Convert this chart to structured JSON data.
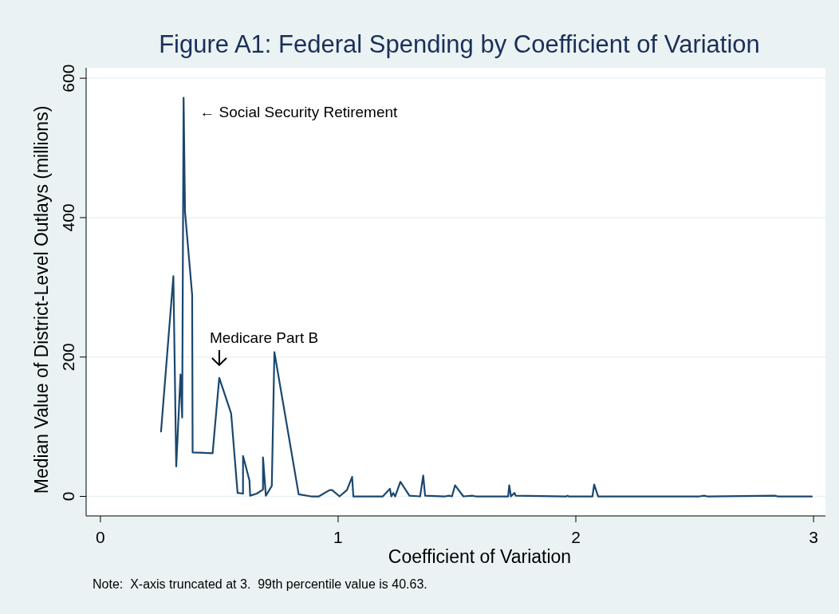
{
  "chart_data": {
    "type": "line",
    "title": "Figure A1: Federal Spending by Coefficient of Variation",
    "xlabel": "Coefficient of Variation",
    "ylabel": "Median Value of District-Level Outlays (millions)",
    "xlim": [
      -0.06,
      3.05
    ],
    "ylim": [
      -28,
      615
    ],
    "xticks": [
      0,
      1,
      2,
      3
    ],
    "yticks": [
      0,
      200,
      400,
      600
    ],
    "grid": "y",
    "series": [
      {
        "color": "#1a476f",
        "x": [
          0.255,
          0.307,
          0.319,
          0.337,
          0.344,
          0.35,
          0.356,
          0.386,
          0.388,
          0.472,
          0.5,
          0.55,
          0.577,
          0.6,
          0.6,
          0.627,
          0.63,
          0.658,
          0.684,
          0.684,
          0.696,
          0.721,
          0.732,
          0.834,
          0.886,
          0.919,
          0.964,
          0.975,
          1.006,
          1.037,
          1.059,
          1.064,
          1.188,
          1.218,
          1.224,
          1.232,
          1.24,
          1.262,
          1.3,
          1.345,
          1.358,
          1.366,
          1.45,
          1.466,
          1.479,
          1.492,
          1.527,
          1.563,
          1.579,
          1.715,
          1.72,
          1.727,
          1.742,
          1.747,
          1.96,
          1.965,
          1.97,
          2.07,
          2.077,
          2.094,
          2.519,
          2.54,
          2.553,
          2.838,
          2.849,
          2.993
        ],
        "values": [
          93,
          316,
          43,
          175,
          113,
          572,
          408,
          289,
          63,
          62,
          170,
          119,
          5,
          4,
          58,
          23,
          1,
          4,
          10,
          56,
          1,
          15,
          207,
          3,
          0,
          0,
          9,
          9,
          0,
          9,
          28,
          0,
          0,
          11,
          0,
          5,
          0,
          21,
          1,
          0,
          30,
          1,
          0,
          1,
          0,
          16,
          0,
          1,
          0,
          0,
          16,
          0,
          5,
          1,
          0,
          1,
          0,
          0,
          17,
          0,
          0,
          1,
          0,
          1,
          0,
          0
        ]
      }
    ],
    "annotations": [
      {
        "text": "← Social Security Retirement",
        "x": 0.35,
        "y": 572
      },
      {
        "text": "Medicare Part B",
        "x": 0.5,
        "y": 170
      },
      "Note:  X-axis truncated at 3.  99th percentile value is 40.63."
    ]
  }
}
